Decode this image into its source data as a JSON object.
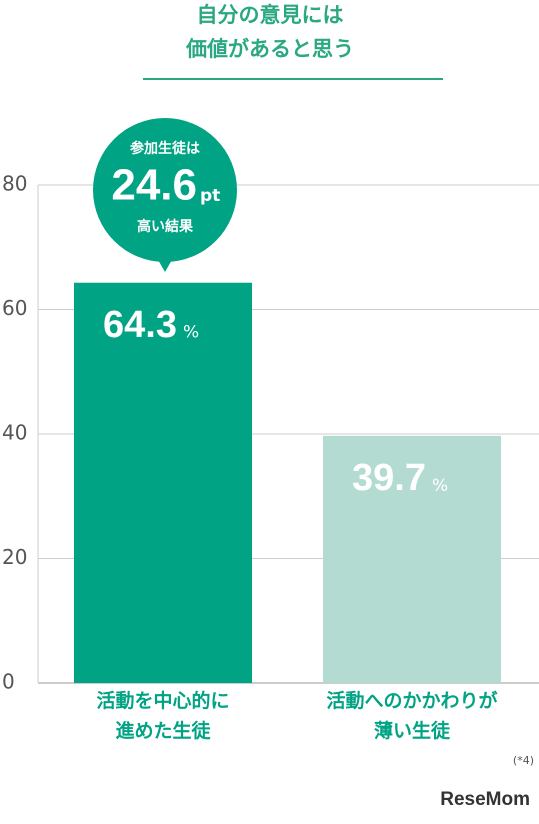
{
  "chart_data": {
    "type": "bar",
    "title": [
      "自分の意見には",
      "価値があると思う"
    ],
    "categories": [
      "活動を中心的に\n進めた生徒",
      "活動へのかかわりが\n薄い生徒"
    ],
    "values": [
      64.3,
      39.7
    ],
    "unit": "%",
    "colors": [
      "#00a383",
      "#b4dbd1"
    ],
    "ylim": [
      0,
      80
    ],
    "yticks": [
      0,
      20,
      40,
      60,
      80
    ],
    "grid": true,
    "annotation": {
      "lead": "参加生徒は",
      "value": 24.6,
      "unit": "pt",
      "tail": "高い結果"
    },
    "footnote": "(*4)",
    "source": "ReseMom"
  }
}
